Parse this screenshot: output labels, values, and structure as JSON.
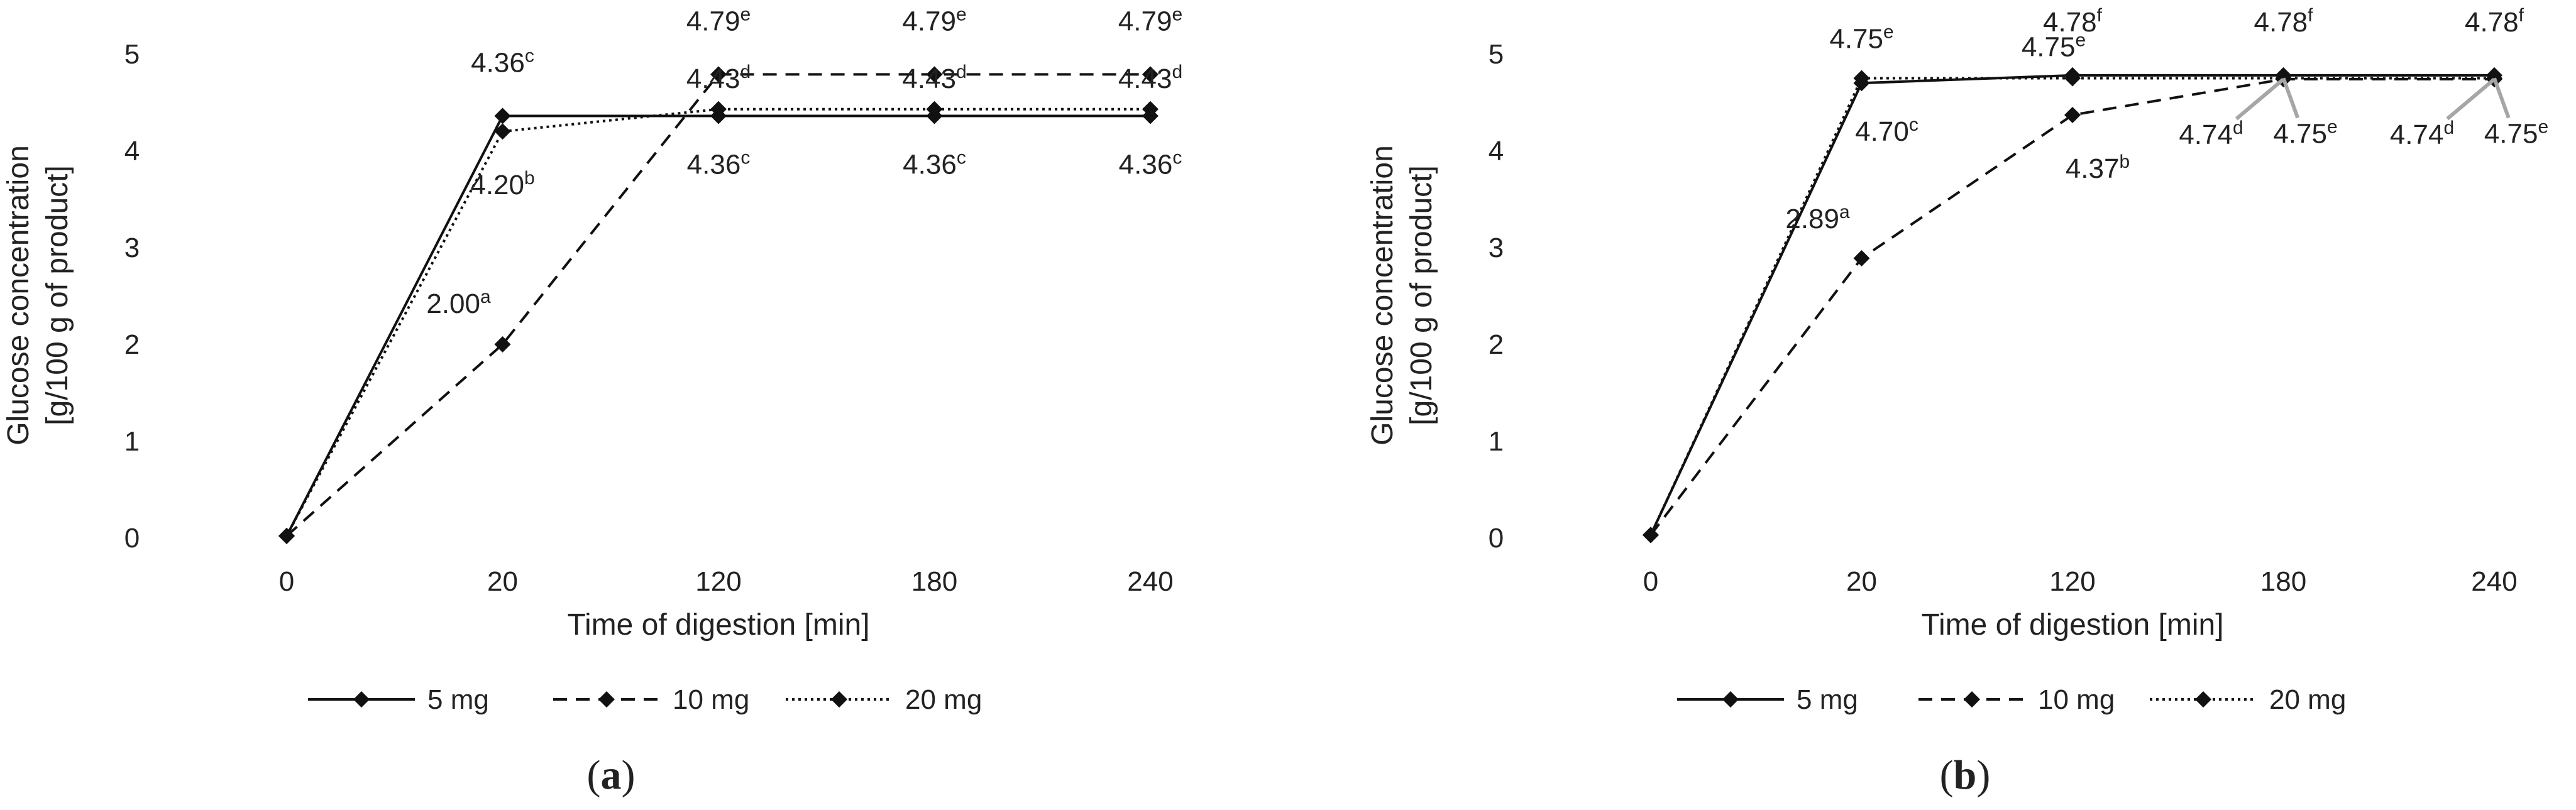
{
  "chart_data": [
    {
      "type": "line",
      "panel_label": "a",
      "categories": [
        "0",
        "20",
        "120",
        "180",
        "240"
      ],
      "xlabel": "Time of digestion [min]",
      "ylabel_line1": "Glucose concentration",
      "ylabel_line2": "[g/100 g of product]",
      "ylim": [
        0,
        5
      ],
      "yticks": [
        0,
        1,
        2,
        3,
        4,
        5
      ],
      "grid": false,
      "legend_position": "bottom",
      "series": [
        {
          "name": "5 mg",
          "style": "solid",
          "values": [
            0.02,
            4.36,
            4.36,
            4.36,
            4.36
          ]
        },
        {
          "name": "10 mg",
          "style": "dashed",
          "values": [
            0.02,
            2.0,
            4.79,
            4.79,
            4.79
          ]
        },
        {
          "name": "20 mg",
          "style": "dotted",
          "values": [
            0.02,
            4.2,
            4.43,
            4.43,
            4.43
          ]
        }
      ],
      "annotations": [
        {
          "text": "4.36",
          "sup": "c",
          "category": "20",
          "value": 4.36
        },
        {
          "text": "4.20",
          "sup": "b",
          "category": "20",
          "value": 4.2
        },
        {
          "text": "2.00",
          "sup": "a",
          "category": "20",
          "value": 2.0
        },
        {
          "text": "4.79",
          "sup": "e",
          "category": "120",
          "value": 4.79
        },
        {
          "text": "4.43",
          "sup": "d",
          "category": "120",
          "value": 4.43
        },
        {
          "text": "4.36",
          "sup": "c",
          "category": "120",
          "value": 4.36
        },
        {
          "text": "4.79",
          "sup": "e",
          "category": "180",
          "value": 4.79
        },
        {
          "text": "4.43",
          "sup": "d",
          "category": "180",
          "value": 4.43
        },
        {
          "text": "4.36",
          "sup": "c",
          "category": "180",
          "value": 4.36
        },
        {
          "text": "4.79",
          "sup": "e",
          "category": "240",
          "value": 4.79
        },
        {
          "text": "4.43",
          "sup": "d",
          "category": "240",
          "value": 4.43
        },
        {
          "text": "4.36",
          "sup": "c",
          "category": "240",
          "value": 4.36
        }
      ]
    },
    {
      "type": "line",
      "panel_label": "b",
      "categories": [
        "0",
        "20",
        "120",
        "180",
        "240"
      ],
      "xlabel": "Time of digestion [min]",
      "ylabel_line1": "Glucose concentration",
      "ylabel_line2": "[g/100 g of product]",
      "ylim": [
        0,
        5
      ],
      "yticks": [
        0,
        1,
        2,
        3,
        4,
        5
      ],
      "grid": false,
      "legend_position": "bottom",
      "series": [
        {
          "name": "5 mg",
          "style": "solid",
          "values": [
            0.03,
            4.7,
            4.78,
            4.78,
            4.78
          ]
        },
        {
          "name": "10 mg",
          "style": "dashed",
          "values": [
            0.03,
            2.89,
            4.37,
            4.74,
            4.74
          ]
        },
        {
          "name": "20 mg",
          "style": "dotted",
          "values": [
            0.03,
            4.75,
            4.75,
            4.75,
            4.75
          ]
        }
      ],
      "annotations": [
        {
          "text": "4.75",
          "sup": "e",
          "category": "20",
          "value": 4.75
        },
        {
          "text": "4.70",
          "sup": "c",
          "category": "20",
          "value": 4.7
        },
        {
          "text": "2.89",
          "sup": "a",
          "category": "20",
          "value": 2.89
        },
        {
          "text": "4.78",
          "sup": "f",
          "category": "120",
          "value": 4.78
        },
        {
          "text": "4.75",
          "sup": "e",
          "category": "120",
          "value": 4.75
        },
        {
          "text": "4.37",
          "sup": "b",
          "category": "120",
          "value": 4.37
        },
        {
          "text": "4.78",
          "sup": "f",
          "category": "180",
          "value": 4.78
        },
        {
          "text": "4.74",
          "sup": "d",
          "category": "180",
          "value": 4.74
        },
        {
          "text": "4.75",
          "sup": "e",
          "category": "180",
          "value": 4.75
        },
        {
          "text": "4.78",
          "sup": "f",
          "category": "240",
          "value": 4.78
        },
        {
          "text": "4.74",
          "sup": "d",
          "category": "240",
          "value": 4.74
        },
        {
          "text": "4.75",
          "sup": "e",
          "category": "240",
          "value": 4.75
        }
      ]
    }
  ]
}
